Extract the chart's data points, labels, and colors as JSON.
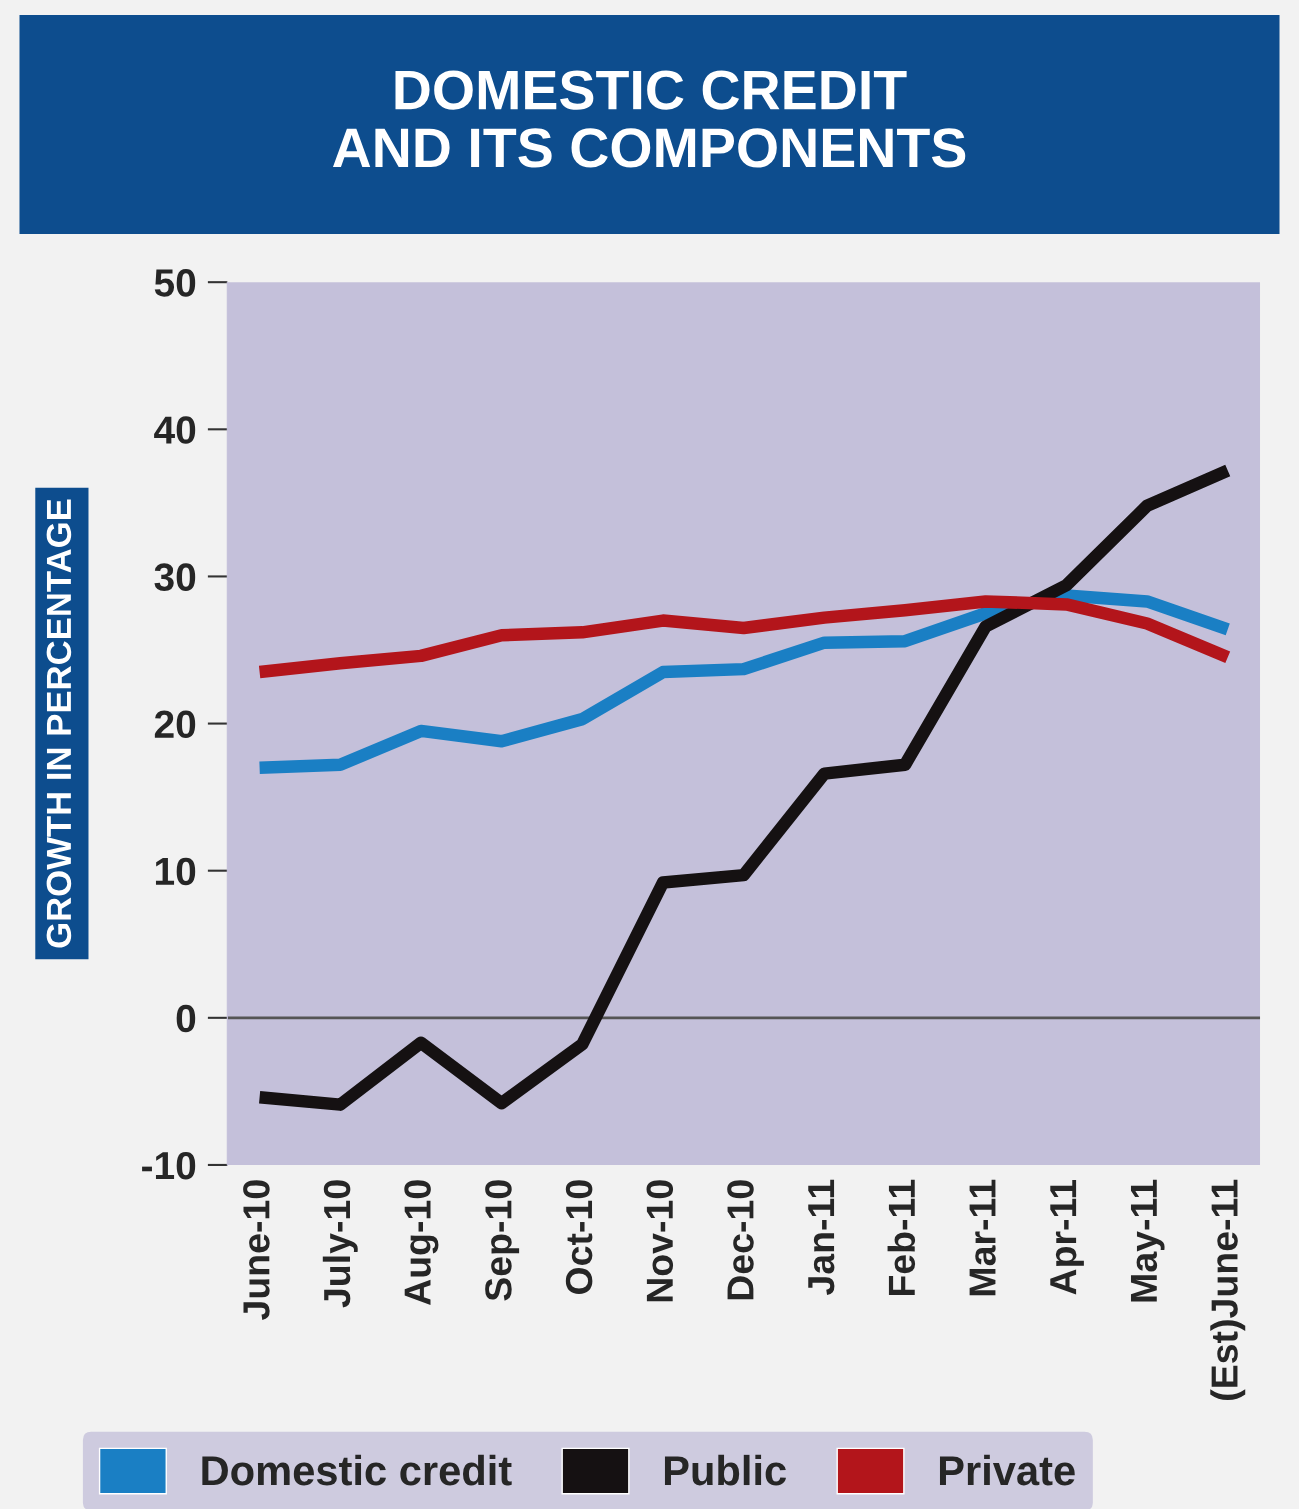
{
  "chart_data": {
    "type": "line",
    "title": "DOMESTIC CREDIT\nAND ITS COMPONENTS",
    "ylabel": "GROWTH IN PERCENTAGE",
    "categories": [
      "June-10",
      "July-10",
      "Aug-10",
      "Sep-10",
      "Oct-10",
      "Nov-10",
      "Dec-10",
      "Jan-11",
      "Feb-11",
      "Mar-11",
      "Apr-11",
      "May-11",
      "(Est)June-11"
    ],
    "series": [
      {
        "name": "Domestic credit",
        "color": "#1a7fc4",
        "values": [
          17.0,
          17.2,
          19.5,
          18.8,
          20.3,
          23.5,
          23.7,
          25.5,
          25.6,
          27.5,
          28.7,
          28.3,
          26.4
        ]
      },
      {
        "name": "Public",
        "color": "#151112",
        "values": [
          -5.4,
          -5.9,
          -1.7,
          -5.8,
          -1.8,
          9.2,
          9.7,
          16.6,
          17.2,
          26.6,
          29.4,
          34.8,
          37.2
        ]
      },
      {
        "name": "Private",
        "color": "#b3151b",
        "values": [
          23.5,
          24.1,
          24.6,
          26.0,
          26.2,
          27.0,
          26.5,
          27.2,
          27.7,
          28.3,
          28.1,
          26.8,
          24.5
        ]
      }
    ],
    "ylim": [
      -10,
      50
    ],
    "yticks": [
      -10,
      0,
      10,
      20,
      30,
      40,
      50
    ],
    "ref_lines": [
      {
        "axis": "y",
        "value": 0,
        "color": "#555555"
      }
    ],
    "grid": false,
    "legend": "bottom",
    "marker": "none",
    "line_style": "solid"
  }
}
